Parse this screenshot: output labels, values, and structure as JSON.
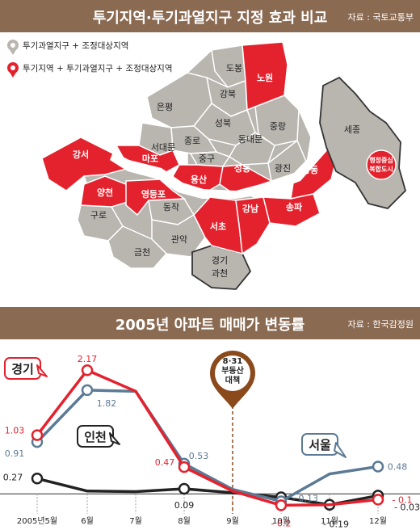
{
  "map_panel": {
    "title": "투기지역·투기과열지구 지정 효과 비교",
    "source": "자료 : 국토교통부",
    "legend": [
      {
        "label": "투기과열지구 + 조정대상지역",
        "color": "#b9b6b0"
      },
      {
        "label": "투기지역 + 투기과열지구 + 조정대상지역",
        "color": "#e3222e"
      }
    ],
    "districts": [
      {
        "name": "도봉",
        "type": "gray"
      },
      {
        "name": "노원",
        "type": "red"
      },
      {
        "name": "강북",
        "type": "gray"
      },
      {
        "name": "은평",
        "type": "gray"
      },
      {
        "name": "성북",
        "type": "gray"
      },
      {
        "name": "중랑",
        "type": "gray"
      },
      {
        "name": "종로",
        "type": "gray"
      },
      {
        "name": "동대문",
        "type": "gray"
      },
      {
        "name": "서대문",
        "type": "gray"
      },
      {
        "name": "중구",
        "type": "gray"
      },
      {
        "name": "마포",
        "type": "red"
      },
      {
        "name": "강서",
        "type": "red"
      },
      {
        "name": "성동",
        "type": "red"
      },
      {
        "name": "광진",
        "type": "gray"
      },
      {
        "name": "용산",
        "type": "red"
      },
      {
        "name": "강동",
        "type": "red"
      },
      {
        "name": "양천",
        "type": "red"
      },
      {
        "name": "영등포",
        "type": "red"
      },
      {
        "name": "동작",
        "type": "gray"
      },
      {
        "name": "강남",
        "type": "red"
      },
      {
        "name": "송파",
        "type": "red"
      },
      {
        "name": "구로",
        "type": "gray"
      },
      {
        "name": "서초",
        "type": "red"
      },
      {
        "name": "관악",
        "type": "gray"
      },
      {
        "name": "금천",
        "type": "gray"
      },
      {
        "name": "경기",
        "type": "gray"
      },
      {
        "name": "과천",
        "type": "gray"
      },
      {
        "name": "세종",
        "type": "gray"
      }
    ],
    "sejong_badge": [
      "행정중심",
      "복합도시"
    ]
  },
  "chart_panel": {
    "title": "2005년 아파트 매매가 변동률",
    "source": "자료 : 한국감정원"
  },
  "chart_data": {
    "type": "line",
    "title": "2005년 아파트 매매가 변동률",
    "x": [
      "2005년5월",
      "6월",
      "7월",
      "8월",
      "9월",
      "10월",
      "11월",
      "12월"
    ],
    "series": [
      {
        "name": "경기",
        "color": "#e3222e",
        "values": [
          1.03,
          2.17,
          1.8,
          0.47,
          0.05,
          -0.2,
          -0.19,
          -0.1
        ],
        "labels": {
          "0": "1.03",
          "1": "2.17",
          "3": "0.47",
          "5": "- 0.2",
          "7": "- 0.1"
        }
      },
      {
        "name": "서울",
        "color": "#5b7a95",
        "values": [
          0.91,
          1.82,
          1.8,
          0.53,
          0.08,
          -0.13,
          0.35,
          0.48
        ],
        "labels": {
          "0": "0.91",
          "1": "1.82",
          "3": "0.53",
          "5": "- 0.13",
          "7": "0.48"
        }
      },
      {
        "name": "인천",
        "color": "#222222",
        "values": [
          0.27,
          0.05,
          0.04,
          0.09,
          0.02,
          -0.06,
          -0.19,
          -0.03
        ],
        "labels": {
          "0": "0.27",
          "3": "0.09",
          "6": "- 0.19",
          "7": "- 0.03"
        }
      }
    ],
    "marker_points": {
      "경기": [
        0,
        1,
        3,
        5,
        7
      ],
      "서울": [
        0,
        1,
        3,
        5,
        7
      ],
      "인천": [
        0,
        3,
        5,
        6,
        7
      ]
    },
    "event": {
      "at": "9월",
      "lines": [
        "8·31",
        "부동산",
        "대책"
      ],
      "color": "#8b4a1c"
    },
    "ylim": [
      -0.35,
      2.4
    ]
  }
}
